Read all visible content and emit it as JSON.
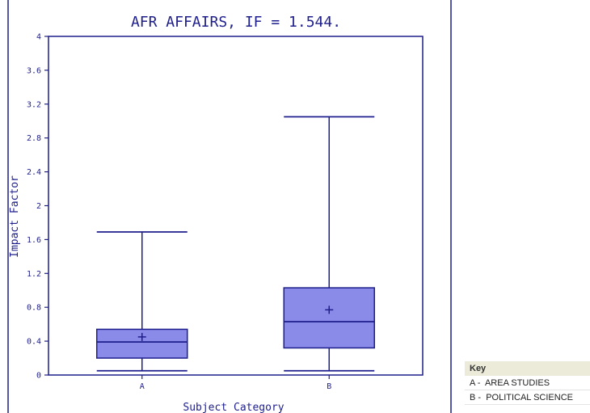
{
  "colors": {
    "frame": "#1e1e8c",
    "box_fill": "#8a8ae8",
    "text": "#1e1e8c"
  },
  "chart_data": {
    "type": "boxplot",
    "title": "AFR AFFAIRS, IF = 1.544.",
    "xlabel": "Subject Category",
    "ylabel": "Impact Factor",
    "ylim": [
      0,
      4
    ],
    "yticks": [
      "0",
      "0.4",
      "0.8",
      "1.2",
      "1.6",
      "2",
      "2.4",
      "2.8",
      "3.2",
      "3.6",
      "4"
    ],
    "grid": false,
    "categories": [
      "A",
      "B"
    ],
    "boxes": [
      {
        "category": "A",
        "whisker_low": 0.05,
        "q1": 0.2,
        "median": 0.39,
        "q3": 0.54,
        "whisker_high": 1.69,
        "mean": 0.45
      },
      {
        "category": "B",
        "whisker_low": 0.05,
        "q1": 0.32,
        "median": 0.63,
        "q3": 1.03,
        "whisker_high": 3.05,
        "mean": 0.77
      }
    ]
  },
  "key": {
    "title": "Key",
    "items": [
      {
        "code": "A",
        "label": "AREA STUDIES"
      },
      {
        "code": "B",
        "label": "POLITICAL SCIENCE"
      }
    ]
  }
}
